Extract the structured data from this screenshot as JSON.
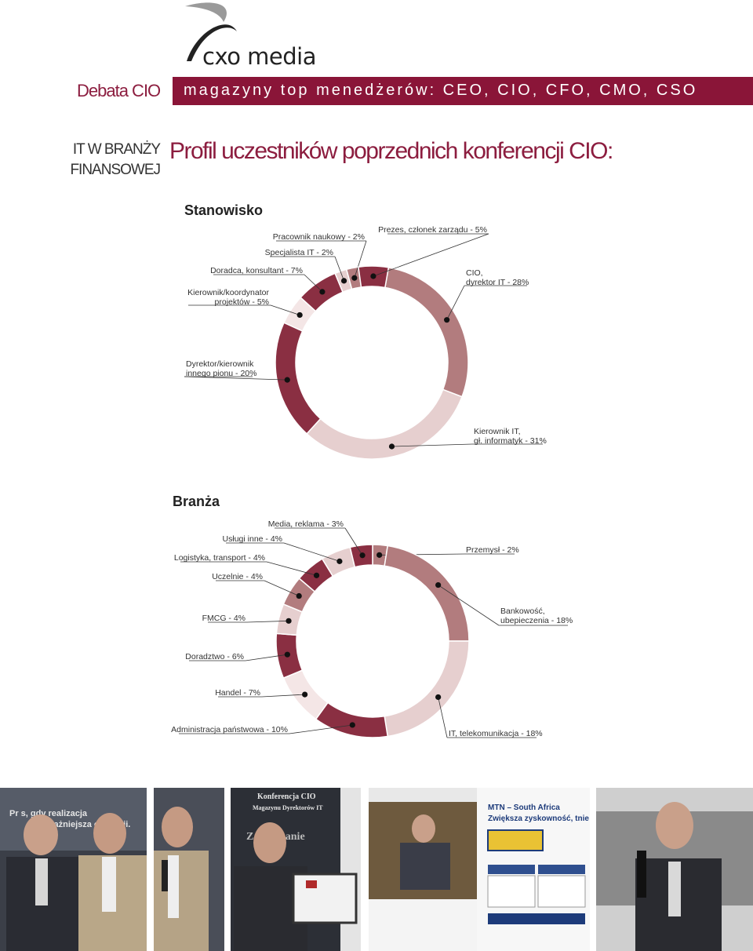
{
  "brand": {
    "logo_text": "cxo media"
  },
  "header": {
    "section_label": "Debata CIO",
    "banner_text": "magazyny top menedżerów: CEO, CIO, CFO, CMO, CSO"
  },
  "title": {
    "side_line1": "IT W BRANŻY",
    "side_line2": "FINANSOWEJ",
    "main": "Profil uczestników poprzednich konferencji CIO:"
  },
  "colors": {
    "brand": "#8a1538",
    "dark": "#8a2f42",
    "medium": "#b27c7e",
    "light": "#e6cfcf",
    "pale": "#f4e6e6"
  },
  "chart_data": [
    {
      "type": "pie",
      "title": "Stanowisko",
      "slices": [
        {
          "label": "CIO, dyrektor IT - 28%",
          "lines": [
            "CIO,",
            "dyrektor IT - 28%"
          ],
          "value": 28,
          "color": "#b27c7e"
        },
        {
          "label": "Kierownik IT, gł. informatyk - 31%",
          "lines": [
            "Kierownik IT,",
            "gł. informatyk - 31%"
          ],
          "value": 31,
          "color": "#e6cfcf"
        },
        {
          "label": "Dyrektor/kierownik innego pionu - 20%",
          "lines": [
            "Dyrektor/kierownik",
            "innego pionu - 20%"
          ],
          "value": 20,
          "color": "#8a2f42"
        },
        {
          "label": "Kierownik/koordynator projektów - 5%",
          "lines": [
            "Kierownik/koordynator",
            "projektów - 5%"
          ],
          "value": 5,
          "color": "#f4e6e6"
        },
        {
          "label": "Doradca, konsultant - 7%",
          "lines": [
            "Doradca, konsultant - 7%"
          ],
          "value": 7,
          "color": "#8a2f42"
        },
        {
          "label": "Specjalista IT - 2%",
          "lines": [
            "Specjalista IT - 2%"
          ],
          "value": 2,
          "color": "#e6cfcf"
        },
        {
          "label": "Pracownik naukowy - 2%",
          "lines": [
            "Pracownik naukowy - 2%"
          ],
          "value": 2,
          "color": "#b27c7e"
        },
        {
          "label": "Prezes, członek zarządu - 5%",
          "lines": [
            "Prezes, członek zarządu - 5%"
          ],
          "value": 5,
          "color": "#8a2f42"
        }
      ]
    },
    {
      "type": "pie",
      "title": "Branża",
      "slices": [
        {
          "label": "Przemysł - 2%",
          "lines": [
            "Przemysł - 2%"
          ],
          "value": 2,
          "color": "#b27c7e"
        },
        {
          "label": "Bankowość, ubepieczenia - 18%",
          "lines": [
            "Bankowość,",
            "ubepieczenia - 18%"
          ],
          "value": 18,
          "color": "#b27c7e"
        },
        {
          "label": "IT, telekomunikacja - 18%",
          "lines": [
            "IT, telekomunikacja - 18%"
          ],
          "value": 18,
          "color": "#e6cfcf"
        },
        {
          "label": "Administracja państwowa - 10%",
          "lines": [
            "Administracja państwowa - 10%"
          ],
          "value": 10,
          "color": "#8a2f42"
        },
        {
          "label": "Handel - 7%",
          "lines": [
            "Handel - 7%"
          ],
          "value": 7,
          "color": "#f4e6e6"
        },
        {
          "label": "Doradztwo - 6%",
          "lines": [
            "Doradztwo - 6%"
          ],
          "value": 6,
          "color": "#8a2f42"
        },
        {
          "label": "FMCG - 4%",
          "lines": [
            "FMCG - 4%"
          ],
          "value": 4,
          "color": "#e6cfcf"
        },
        {
          "label": "Uczelnie - 4%",
          "lines": [
            "Uczelnie - 4%"
          ],
          "value": 4,
          "color": "#b27c7e"
        },
        {
          "label": "Logistyka, transport - 4%",
          "lines": [
            "Logistyka, transport - 4%"
          ],
          "value": 4,
          "color": "#8a2f42"
        },
        {
          "label": "Usługi inne - 4%",
          "lines": [
            "Usługi inne - 4%"
          ],
          "value": 4,
          "color": "#e6cfcf"
        },
        {
          "label": "Media, reklama - 3%",
          "lines": [
            "Media, reklama - 3%"
          ],
          "value": 3,
          "color": "#8a2f42"
        }
      ]
    }
  ],
  "photos": [
    {
      "name": "photo-1",
      "caption_lines": [
        "Pr    s, gdy realizacja",
        "ważniejsza od teorii."
      ]
    },
    {
      "name": "photo-2",
      "caption_lines": [
        "Konferencja CIO",
        "Magazynu Dyrektorów IT",
        "Zarządzanie"
      ]
    },
    {
      "name": "photo-3",
      "caption_lines": []
    },
    {
      "name": "photo-4",
      "caption_lines": [
        "MTN – South Africa",
        "Zwiększa zyskowność, tnie k"
      ]
    },
    {
      "name": "photo-5",
      "caption_lines": []
    }
  ]
}
